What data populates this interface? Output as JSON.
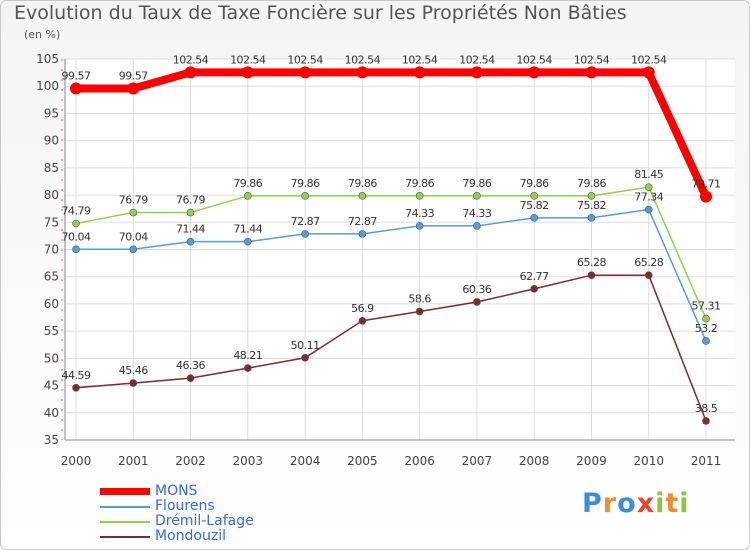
{
  "chart_data": {
    "type": "line",
    "title": "Evolution du Taux de Taxe Foncière sur les Propriétés Non Bâties",
    "unit_label": "(en %)",
    "xlabel": "",
    "ylabel": "",
    "ylim": [
      35,
      105
    ],
    "yticks": [
      35,
      40,
      45,
      50,
      55,
      60,
      65,
      70,
      75,
      80,
      85,
      90,
      95,
      100,
      105
    ],
    "grid": true,
    "legend_position": "bottom-left",
    "categories": [
      "2000",
      "2001",
      "2002",
      "2003",
      "2004",
      "2005",
      "2006",
      "2007",
      "2008",
      "2009",
      "2010",
      "2011"
    ],
    "series": [
      {
        "name": "MONS",
        "color": "#ff0000",
        "values": [
          99.57,
          99.57,
          102.54,
          102.54,
          102.54,
          102.54,
          102.54,
          102.54,
          102.54,
          102.54,
          102.54,
          79.71
        ],
        "labels": [
          "99.57",
          "99.57",
          "102.54",
          "102.54",
          "102.54",
          "102.54",
          "102.54",
          "102.54",
          "102.54",
          "102.54",
          "102.54",
          "79.71"
        ]
      },
      {
        "name": "Flourens",
        "color": "#5b9bd5",
        "values": [
          70.04,
          70.04,
          71.44,
          71.44,
          72.87,
          72.87,
          74.33,
          74.33,
          75.82,
          75.82,
          77.34,
          53.2
        ],
        "labels": [
          "70.04",
          "70.04",
          "71.44",
          "71.44",
          "72.87",
          "72.87",
          "74.33",
          "74.33",
          "75.82",
          "75.82",
          "77.34",
          "53.2"
        ]
      },
      {
        "name": "Drémil-Lafage",
        "color": "#92d050",
        "values": [
          74.79,
          76.79,
          76.79,
          79.86,
          79.86,
          79.86,
          79.86,
          79.86,
          79.86,
          79.86,
          81.45,
          57.31
        ],
        "labels": [
          "74.79",
          "76.79",
          "76.79",
          "79.86",
          "79.86",
          "79.86",
          "79.86",
          "79.86",
          "79.86",
          "79.86",
          "81.45",
          "57.31"
        ]
      },
      {
        "name": "Mondouzil",
        "color": "#7b2c2c",
        "values": [
          44.59,
          45.46,
          46.36,
          48.21,
          50.11,
          56.9,
          58.6,
          60.36,
          62.77,
          65.28,
          65.28,
          38.5
        ],
        "labels": [
          "44.59",
          "45.46",
          "46.36",
          "48.21",
          "50.11",
          "56.9",
          "58.6",
          "60.36",
          "62.77",
          "65.28",
          "65.28",
          "38.5"
        ]
      }
    ]
  },
  "legend": {
    "items": [
      {
        "label": "MONS",
        "color": "#ff0000",
        "text_color": "#3366ff"
      },
      {
        "label": "Flourens",
        "color": "#5b9bd5",
        "text_color": "#3366ff"
      },
      {
        "label": "Drémil-Lafage",
        "color": "#92d050",
        "text_color": "#3366ff"
      },
      {
        "label": "Mondouzil",
        "color": "#7b2c2c",
        "text_color": "#3366ff"
      }
    ]
  },
  "logo": {
    "letters": [
      "P",
      "r",
      "o",
      "x",
      "i",
      "t",
      "i"
    ],
    "colors": [
      "#3a8fd8",
      "#f28c28",
      "#3a8fd8",
      "#e8452c",
      "#8cc63f",
      "#f28c28",
      "#8cc63f"
    ]
  }
}
